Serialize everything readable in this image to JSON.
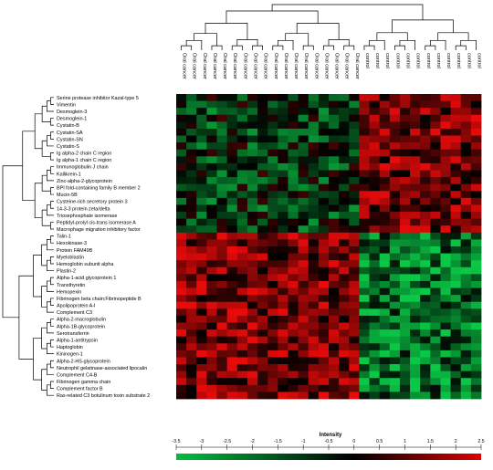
{
  "chart_data": {
    "type": "heatmap",
    "title": "",
    "colorbar": {
      "label": "Intensity",
      "ticks": [
        "-3.5",
        "-3",
        "-2.5",
        "-2",
        "-1.5",
        "-1",
        "-0.5",
        "0",
        "0.5",
        "1",
        "1.5",
        "2",
        "2.5"
      ],
      "range": [
        -3.5,
        2.5
      ],
      "low_color": "#00c040",
      "mid_color": "#000000",
      "high_color": "#e00000"
    },
    "columns": [
      "Oral cancer",
      "Oral cancer",
      "Oral cancer",
      "Oral cancer",
      "Oral cancer",
      "Oral cancer",
      "Oral cancer",
      "Oral cancer",
      "Oral cancer",
      "Oral cancer",
      "Oral cancer",
      "Oral cancer",
      "Oral cancer",
      "Oral cancer",
      "Oral cancer",
      "Oral cancer",
      "Oral cancer",
      "Oral cancer",
      "control",
      "control",
      "control",
      "control",
      "control",
      "control",
      "control",
      "control",
      "control",
      "control",
      "control",
      "control"
    ],
    "rows": [
      "Serine protease inhibitor Kazal-type 5",
      "Vimentin",
      "Desmoglein-3",
      "Desmoglein-1",
      "Cystatin-B",
      "Cystatin-SA",
      "Cystatin-SN",
      "Cystatin-S",
      "Ig alpha-2 chain C region",
      "Ig alpha-1 chain C region",
      "Immunoglobulin J chain",
      "Kallikrein-1",
      "Zinc-alpha-2-glycoprotein",
      "BPI fold-containing family B member 2",
      "Mucin-5B",
      "Cysteine-rich secretory protein 3",
      "14-3-3 protein zeta/delta",
      "Triosephosphate isomerase",
      "Peptidyl-prolyl cis-trans isomerase A",
      "Macrophage migration inhibitory factor",
      "Talin-1",
      "Hexokinase-3",
      "Protein FAM49B",
      "Myeloblastin",
      "Hemoglobin subunit alpha",
      "Plastin-2",
      "Alpha-1-acid glycoprotein 1",
      "Transthyretin",
      "Hemopexin",
      "Fibrinogen beta chain;Fibrinopeptide B",
      "Apolipoprotein A-I",
      "Complement C3",
      "Alpha-2-macroglobulin",
      "Alpha-1B-glycoprotein",
      "Serotransferrin",
      "Alpha-1-antitrypsin",
      "Haptoglobin",
      "Kininogen-1",
      "Alpha-2-HS-glycoprotein",
      "Neutrophil gelatinase-associated lipocalin",
      "Complement C4-B",
      "Fibrinogen gamma chain",
      "Complement factor B",
      "Ras-related C3 botulinum toxin substrate 2"
    ],
    "row_group_means": {
      "rows_0_19": {
        "oral_cancer": -0.6,
        "control": 1.2
      },
      "rows_20_43": {
        "oral_cancer": 1.3,
        "control": -1.4
      }
    }
  }
}
